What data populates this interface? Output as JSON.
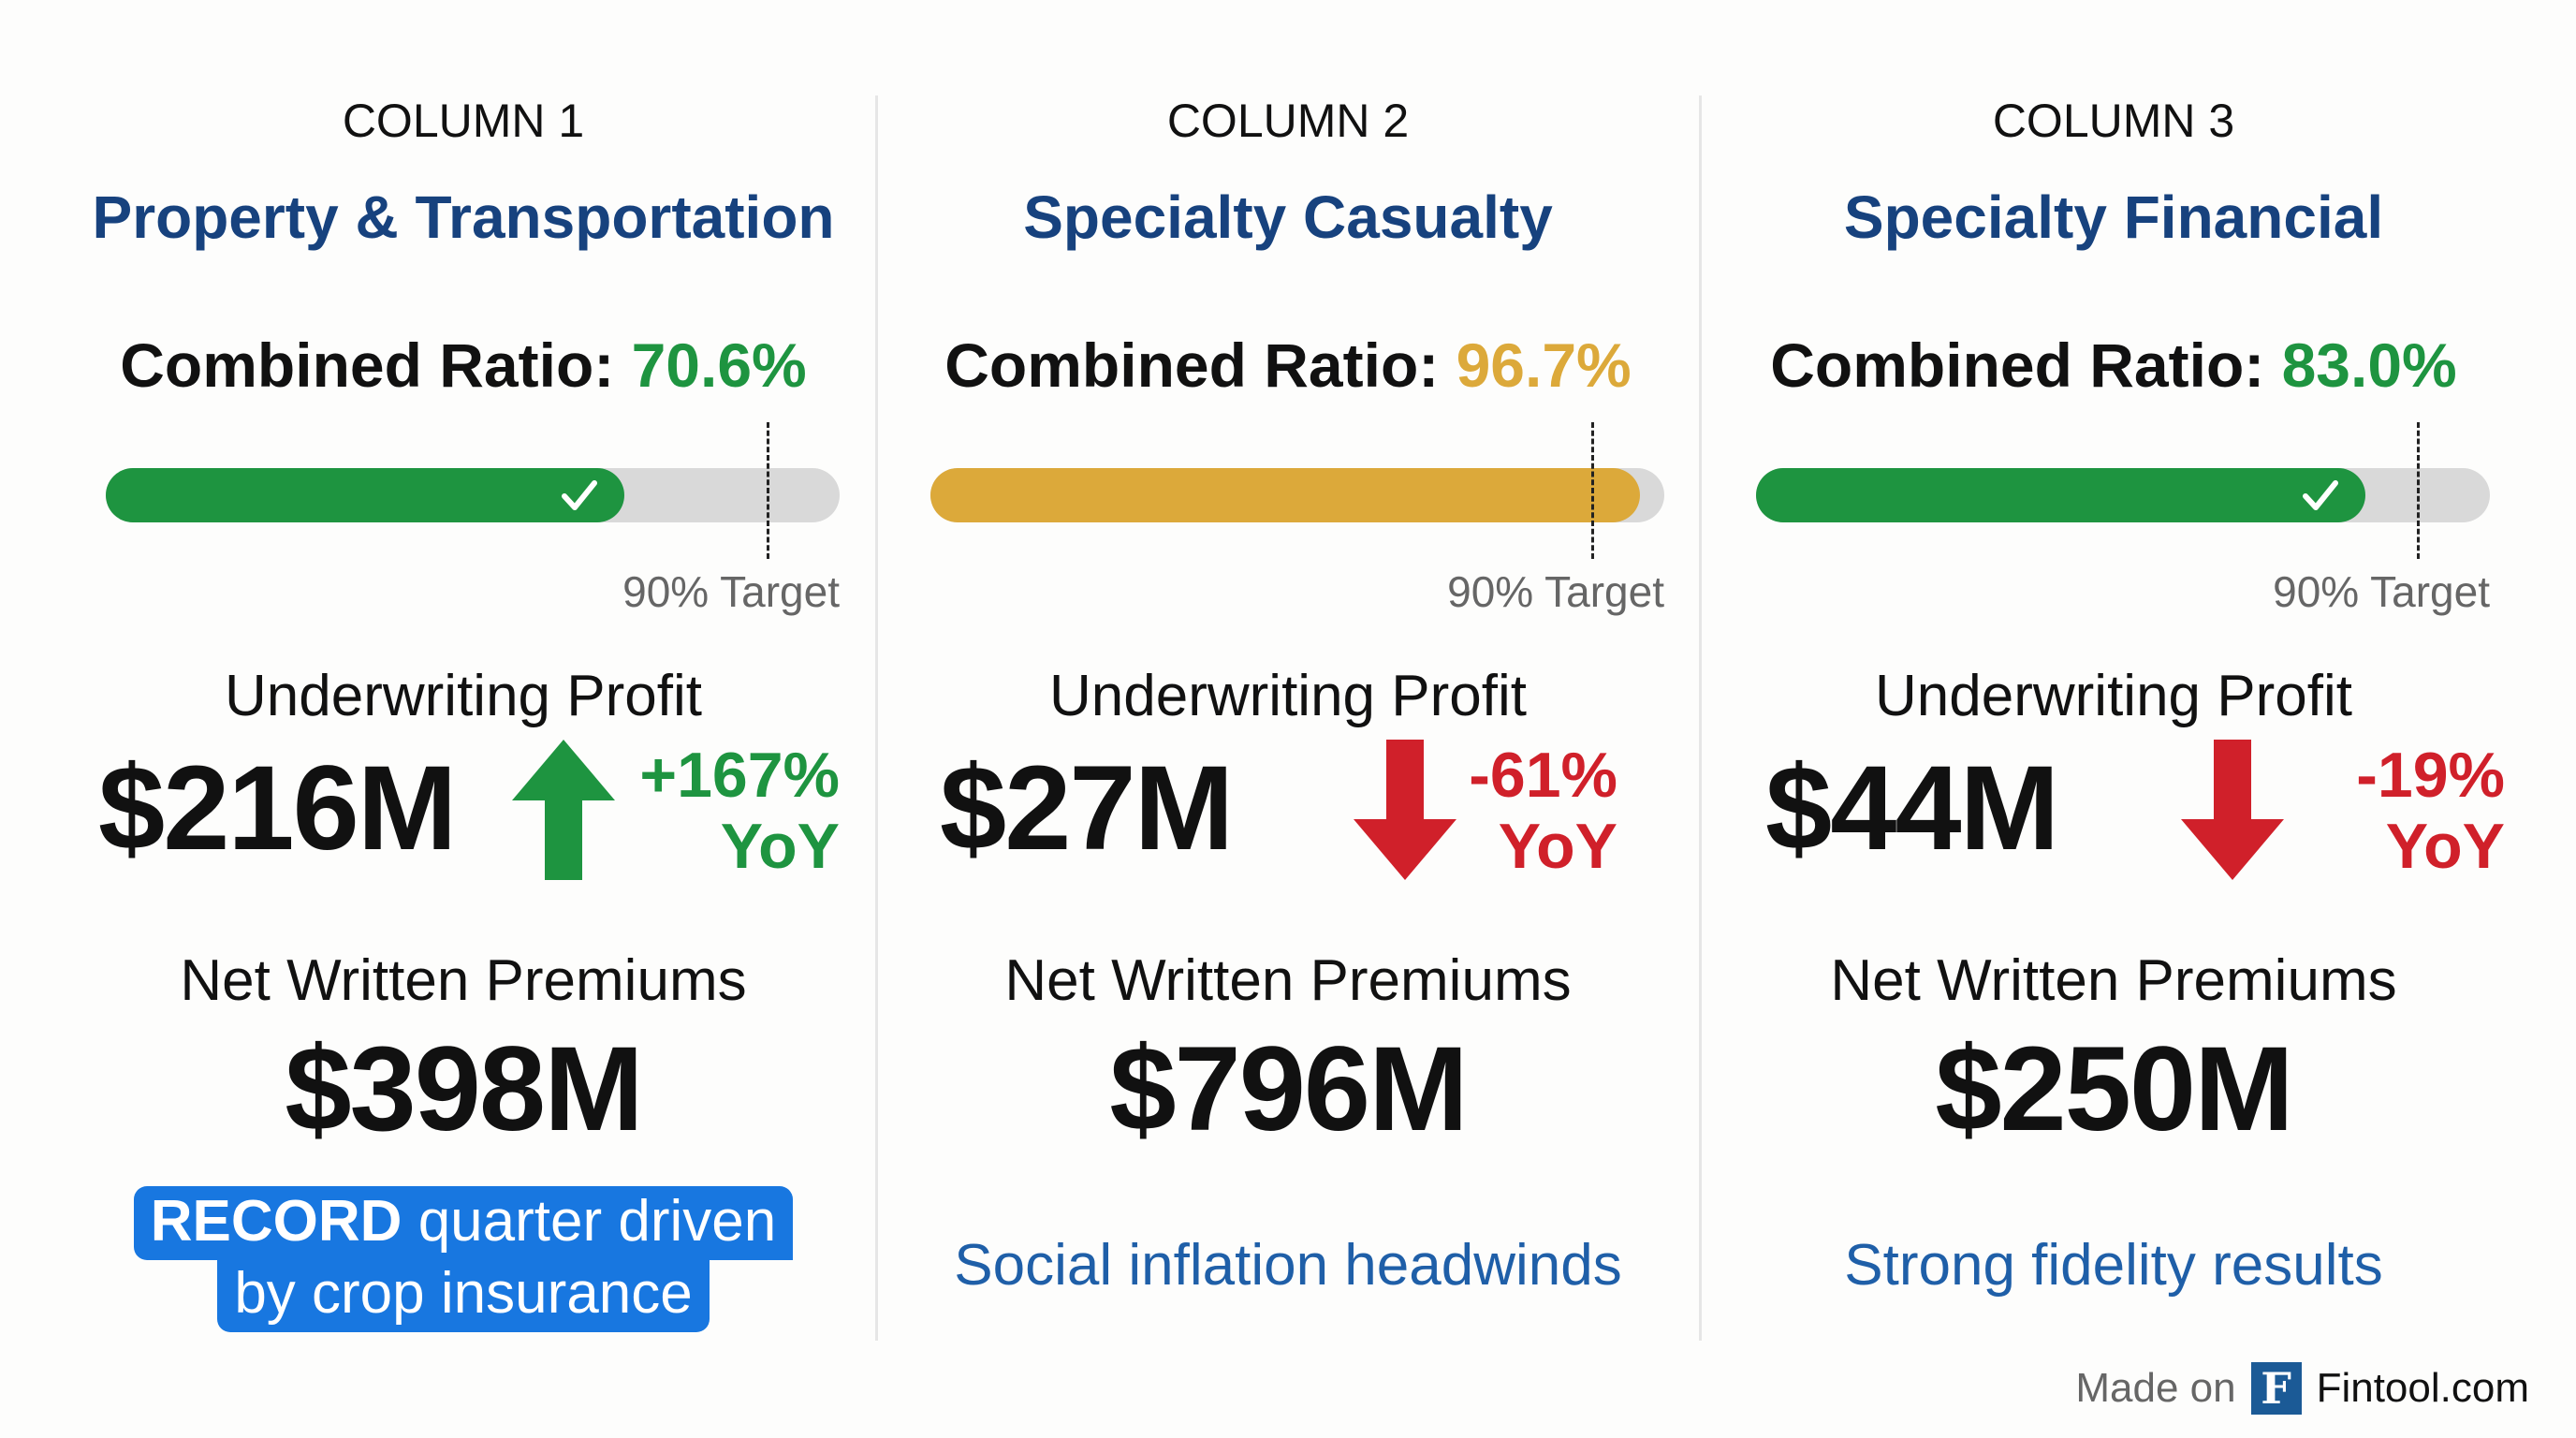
{
  "columns": [
    {
      "header": "COLUMN 1",
      "title": "Property & Transportation",
      "ratio_label": "Combined Ratio:",
      "ratio_value": "70.6%",
      "ratio": 70.6,
      "ratio_color": "#1e9440",
      "on_target": true,
      "target": 90,
      "target_label": "90% Target",
      "uw_label": "Underwriting Profit",
      "uw_value": "$216M",
      "trend": "up",
      "trend_color": "#1e9440",
      "yoy_pct": "+167%",
      "yoy_label": "YoY",
      "nwp_label": "Net Written Premiums",
      "nwp_value": "$398M",
      "note_strong": "RECORD",
      "note_line1": "quarter driven",
      "note_line2": "by crop insurance"
    },
    {
      "header": "COLUMN 2",
      "title": "Specialty Casualty",
      "ratio_label": "Combined Ratio:",
      "ratio_value": "96.7%",
      "ratio": 96.7,
      "ratio_color": "#dca93a",
      "on_target": false,
      "target": 90,
      "target_label": "90% Target",
      "uw_label": "Underwriting Profit",
      "uw_value": "$27M",
      "trend": "down",
      "trend_color": "#d0202a",
      "yoy_pct": "-61%",
      "yoy_label": "YoY",
      "nwp_label": "Net Written Premiums",
      "nwp_value": "$796M",
      "note": "Social inflation headwinds"
    },
    {
      "header": "COLUMN 3",
      "title": "Specialty Financial",
      "ratio_label": "Combined Ratio:",
      "ratio_value": "83.0%",
      "ratio": 83.0,
      "ratio_color": "#1e9440",
      "on_target": true,
      "target": 90,
      "target_label": "90% Target",
      "uw_label": "Underwriting Profit",
      "uw_value": "$44M",
      "trend": "down",
      "trend_color": "#d0202a",
      "yoy_pct": "-19%",
      "yoy_label": "YoY",
      "nwp_label": "Net Written Premiums",
      "nwp_value": "$250M",
      "note": "Strong fidelity results"
    }
  ],
  "colors": {
    "title": "#17427e",
    "badge": "#1877e0",
    "note": "#1f5fa8",
    "bar_track": "#d9d9d9"
  },
  "footer": {
    "made_on": "Made on",
    "logo_letter": "F",
    "brand": "Fintool.com"
  }
}
